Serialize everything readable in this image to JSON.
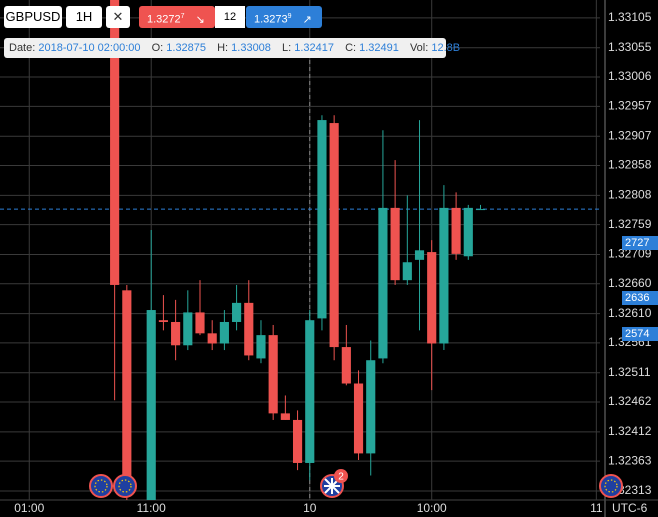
{
  "toolbar": {
    "symbol": "GBPUSD",
    "interval": "1H",
    "close": "✕",
    "sell": {
      "main": "1.3272",
      "pip": "7",
      "arrow": "↘"
    },
    "spread": "12",
    "buy": {
      "main": "1.3273",
      "pip": "9",
      "arrow": "↗"
    }
  },
  "info": {
    "date_label": "Date:",
    "date": "2018-07-10 02:00:00",
    "o_label": "O:",
    "o": "1.32875",
    "h_label": "H:",
    "h": "1.33008",
    "l_label": "L:",
    "l": "1.32417",
    "c_label": "C:",
    "c": "1.32491",
    "vol_label": "Vol:",
    "vol": "12.8B"
  },
  "events": [
    "2"
  ],
  "axis_badges": [
    "2727",
    "2636",
    "2574"
  ],
  "timezone": "UTC-6",
  "chart_data": {
    "type": "candlestick",
    "x": [
      0,
      1,
      3,
      4,
      5,
      6,
      7,
      8,
      9,
      10,
      11,
      12,
      13,
      14,
      15,
      16,
      17,
      18,
      19,
      20,
      21,
      22,
      23,
      24,
      25,
      26,
      27,
      28,
      29,
      30
    ],
    "series": [
      {
        "up_color": "#26a69a",
        "down_color": "#ef5350",
        "open": [
          1.33135,
          1.32649,
          1.32298,
          1.32599,
          1.32596,
          1.32557,
          1.32612,
          1.32577,
          1.3256,
          1.32596,
          1.32628,
          1.32535,
          1.32574,
          1.32443,
          1.32432,
          1.3236,
          1.32602,
          1.32929,
          1.32554,
          1.32493,
          1.32376,
          1.32535,
          1.32787,
          1.32666,
          1.327,
          1.32713,
          1.3256,
          1.32787,
          1.32706,
          1.32785
        ],
        "high": [
          1.33135,
          1.32658,
          1.3275,
          1.32641,
          1.32633,
          1.32649,
          1.32666,
          1.32599,
          1.32616,
          1.32658,
          1.32666,
          1.32599,
          1.32591,
          1.32473,
          1.32448,
          1.32616,
          1.32942,
          1.32942,
          1.32591,
          1.32515,
          1.32565,
          1.32917,
          1.32867,
          1.32808,
          1.32934,
          1.32733,
          1.32825,
          1.32813,
          1.32792,
          1.32792
        ],
        "low": [
          1.32465,
          1.32298,
          1.32298,
          1.32582,
          1.32532,
          1.32549,
          1.32574,
          1.32549,
          1.32549,
          1.32582,
          1.32532,
          1.32527,
          1.32432,
          1.32432,
          1.32348,
          1.32331,
          1.32582,
          1.32532,
          1.3249,
          1.32365,
          1.32339,
          1.32527,
          1.32658,
          1.32658,
          1.32582,
          1.32482,
          1.32549,
          1.327,
          1.327,
          1.32785
        ],
        "close": [
          1.32658,
          1.32314,
          1.32616,
          1.32596,
          1.32557,
          1.32612,
          1.32577,
          1.3256,
          1.32596,
          1.32628,
          1.3254,
          1.32574,
          1.32443,
          1.32432,
          1.3236,
          1.32599,
          1.32934,
          1.32554,
          1.32493,
          1.32376,
          1.32532,
          1.32787,
          1.32666,
          1.32696,
          1.32716,
          1.3256,
          1.32787,
          1.3271,
          1.32787,
          1.32785
        ]
      }
    ],
    "xlim": [
      -9.4,
      39.8
    ],
    "xticks": [
      {
        "value": -7,
        "label": "01:00"
      },
      {
        "value": 3,
        "label": "11:00"
      },
      {
        "value": 16,
        "label": "10"
      },
      {
        "value": 26,
        "label": "10:00"
      },
      {
        "value": 39.5,
        "label": "11"
      }
    ],
    "ylim": [
      1.32298,
      1.33135
    ],
    "yticks": [
      1.33105,
      1.33055,
      1.33006,
      1.32957,
      1.32907,
      1.32858,
      1.32808,
      1.32759,
      1.32709,
      {
        "value": 1.3266,
        "label": "1.32660"
      },
      {
        "value": 1.3261,
        "label": "1.32610"
      },
      1.32561,
      1.32511,
      1.32462,
      1.32412,
      1.32363,
      1.32313
    ],
    "current_price": 1.32785,
    "grid": true
  }
}
